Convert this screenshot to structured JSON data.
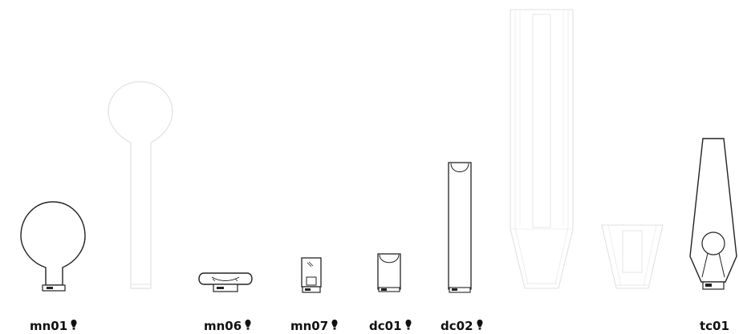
{
  "products": [
    {
      "id": "mn01",
      "label": "mn01",
      "has_bulb_icon": true
    },
    {
      "id": "mn06",
      "label": "mn06",
      "has_bulb_icon": true
    },
    {
      "id": "mn07",
      "label": "mn07",
      "has_bulb_icon": true
    },
    {
      "id": "dc01",
      "label": "dc01",
      "has_bulb_icon": true
    },
    {
      "id": "dc02",
      "label": "dc02",
      "has_bulb_icon": true
    },
    {
      "id": "tc01",
      "label": "tc01",
      "has_bulb_icon": false
    }
  ],
  "colors": {
    "line": "#222222",
    "ghost_line": "#bdbdbd",
    "label": "#111111",
    "background": "#ffffff"
  }
}
